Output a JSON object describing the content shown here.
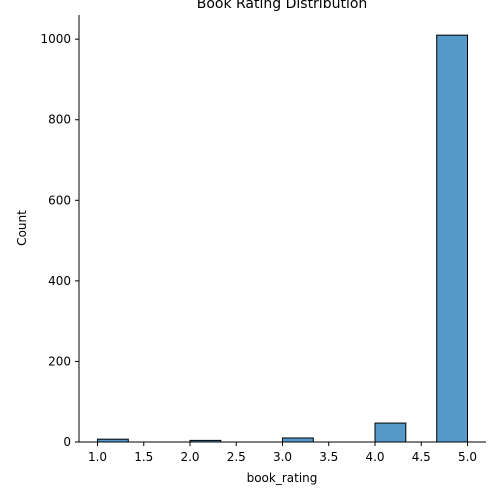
{
  "chart_data": {
    "type": "bar",
    "title": "Book Rating Distribution",
    "xlabel": "book_rating",
    "ylabel": "Count",
    "xlim": [
      0.8,
      5.2
    ],
    "ylim": [
      0,
      1060
    ],
    "x_ticks": [
      "1.0",
      "1.5",
      "2.0",
      "2.5",
      "3.0",
      "3.5",
      "4.0",
      "4.5",
      "5.0"
    ],
    "y_ticks": [
      "0",
      "200",
      "400",
      "600",
      "800",
      "1000"
    ],
    "bins": [
      {
        "x_start": 1.0,
        "x_end": 1.333,
        "count": 7
      },
      {
        "x_start": 1.333,
        "x_end": 1.667,
        "count": 0
      },
      {
        "x_start": 1.667,
        "x_end": 2.0,
        "count": 0
      },
      {
        "x_start": 2.0,
        "x_end": 2.333,
        "count": 4
      },
      {
        "x_start": 2.333,
        "x_end": 2.667,
        "count": 0
      },
      {
        "x_start": 2.667,
        "x_end": 3.0,
        "count": 0
      },
      {
        "x_start": 3.0,
        "x_end": 3.333,
        "count": 10
      },
      {
        "x_start": 3.333,
        "x_end": 3.667,
        "count": 0
      },
      {
        "x_start": 3.667,
        "x_end": 4.0,
        "count": 0
      },
      {
        "x_start": 4.0,
        "x_end": 4.333,
        "count": 47
      },
      {
        "x_start": 4.333,
        "x_end": 4.667,
        "count": 0
      },
      {
        "x_start": 4.667,
        "x_end": 5.0,
        "count": 1010
      }
    ],
    "bar_color": "#5499c7",
    "bar_edge_color": "#000000",
    "grid": false,
    "spines": [
      "left",
      "bottom"
    ]
  }
}
